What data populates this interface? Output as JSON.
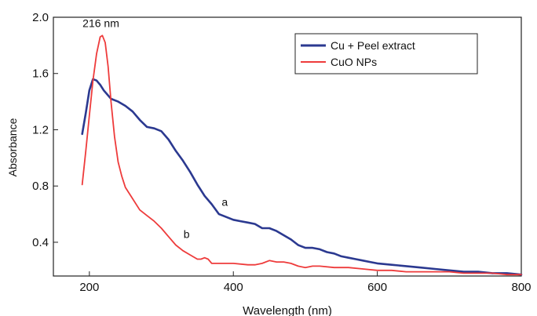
{
  "chart_data": {
    "type": "line",
    "xlabel": "Wavelength (nm)",
    "ylabel": "Absorbance",
    "xlim": [
      150,
      800
    ],
    "ylim": [
      0.16,
      2.0
    ],
    "x_ticks": [
      200,
      400,
      600,
      800
    ],
    "x_tick_labels": [
      "200",
      "400",
      "600",
      "800"
    ],
    "y_ticks": [
      0.4,
      0.8,
      1.2,
      1.6,
      2.0
    ],
    "y_tick_labels": [
      "0.4",
      "0.8",
      "1.2",
      "1.6",
      "2.0"
    ],
    "grid": false,
    "legend_position": "top-right",
    "series": [
      {
        "name": "Cu + Peel extract",
        "color": "#2b3990",
        "points": [
          [
            190,
            1.17
          ],
          [
            195,
            1.32
          ],
          [
            200,
            1.48
          ],
          [
            205,
            1.56
          ],
          [
            210,
            1.55
          ],
          [
            215,
            1.52
          ],
          [
            220,
            1.48
          ],
          [
            230,
            1.42
          ],
          [
            240,
            1.4
          ],
          [
            250,
            1.37
          ],
          [
            260,
            1.33
          ],
          [
            270,
            1.27
          ],
          [
            280,
            1.22
          ],
          [
            290,
            1.21
          ],
          [
            300,
            1.19
          ],
          [
            310,
            1.13
          ],
          [
            320,
            1.05
          ],
          [
            330,
            0.98
          ],
          [
            340,
            0.9
          ],
          [
            350,
            0.81
          ],
          [
            360,
            0.73
          ],
          [
            370,
            0.67
          ],
          [
            380,
            0.6
          ],
          [
            390,
            0.58
          ],
          [
            400,
            0.56
          ],
          [
            410,
            0.55
          ],
          [
            420,
            0.54
          ],
          [
            430,
            0.53
          ],
          [
            440,
            0.5
          ],
          [
            450,
            0.5
          ],
          [
            460,
            0.48
          ],
          [
            470,
            0.45
          ],
          [
            480,
            0.42
          ],
          [
            490,
            0.38
          ],
          [
            500,
            0.36
          ],
          [
            510,
            0.36
          ],
          [
            520,
            0.35
          ],
          [
            530,
            0.33
          ],
          [
            540,
            0.32
          ],
          [
            550,
            0.3
          ],
          [
            560,
            0.29
          ],
          [
            570,
            0.28
          ],
          [
            580,
            0.27
          ],
          [
            590,
            0.26
          ],
          [
            600,
            0.25
          ],
          [
            620,
            0.24
          ],
          [
            640,
            0.23
          ],
          [
            660,
            0.22
          ],
          [
            680,
            0.21
          ],
          [
            700,
            0.2
          ],
          [
            720,
            0.19
          ],
          [
            740,
            0.19
          ],
          [
            760,
            0.18
          ],
          [
            780,
            0.18
          ],
          [
            800,
            0.17
          ]
        ]
      },
      {
        "name": "CuO NPs",
        "color": "#ee3b3b",
        "points": [
          [
            190,
            0.81
          ],
          [
            195,
            1.05
          ],
          [
            200,
            1.3
          ],
          [
            205,
            1.55
          ],
          [
            210,
            1.74
          ],
          [
            215,
            1.86
          ],
          [
            218,
            1.87
          ],
          [
            222,
            1.82
          ],
          [
            226,
            1.65
          ],
          [
            230,
            1.4
          ],
          [
            235,
            1.15
          ],
          [
            240,
            0.97
          ],
          [
            245,
            0.87
          ],
          [
            250,
            0.79
          ],
          [
            260,
            0.71
          ],
          [
            270,
            0.63
          ],
          [
            280,
            0.59
          ],
          [
            290,
            0.55
          ],
          [
            300,
            0.5
          ],
          [
            310,
            0.44
          ],
          [
            320,
            0.38
          ],
          [
            330,
            0.34
          ],
          [
            340,
            0.31
          ],
          [
            350,
            0.28
          ],
          [
            355,
            0.28
          ],
          [
            360,
            0.29
          ],
          [
            365,
            0.28
          ],
          [
            370,
            0.25
          ],
          [
            380,
            0.25
          ],
          [
            400,
            0.25
          ],
          [
            420,
            0.24
          ],
          [
            430,
            0.24
          ],
          [
            440,
            0.25
          ],
          [
            450,
            0.27
          ],
          [
            460,
            0.26
          ],
          [
            470,
            0.26
          ],
          [
            480,
            0.25
          ],
          [
            490,
            0.23
          ],
          [
            500,
            0.22
          ],
          [
            510,
            0.23
          ],
          [
            520,
            0.23
          ],
          [
            540,
            0.22
          ],
          [
            560,
            0.22
          ],
          [
            580,
            0.21
          ],
          [
            600,
            0.2
          ],
          [
            620,
            0.2
          ],
          [
            640,
            0.19
          ],
          [
            660,
            0.19
          ],
          [
            680,
            0.19
          ],
          [
            700,
            0.19
          ],
          [
            720,
            0.18
          ],
          [
            740,
            0.18
          ],
          [
            760,
            0.18
          ],
          [
            780,
            0.17
          ],
          [
            800,
            0.17
          ]
        ]
      }
    ],
    "annotations": [
      {
        "name": "peak-label",
        "text": "216 nm",
        "x": 216,
        "y": 1.93
      },
      {
        "name": "curve-label-a",
        "text": "a",
        "x": 388,
        "y": 0.66
      },
      {
        "name": "curve-label-b",
        "text": "b",
        "x": 335,
        "y": 0.43
      }
    ]
  }
}
